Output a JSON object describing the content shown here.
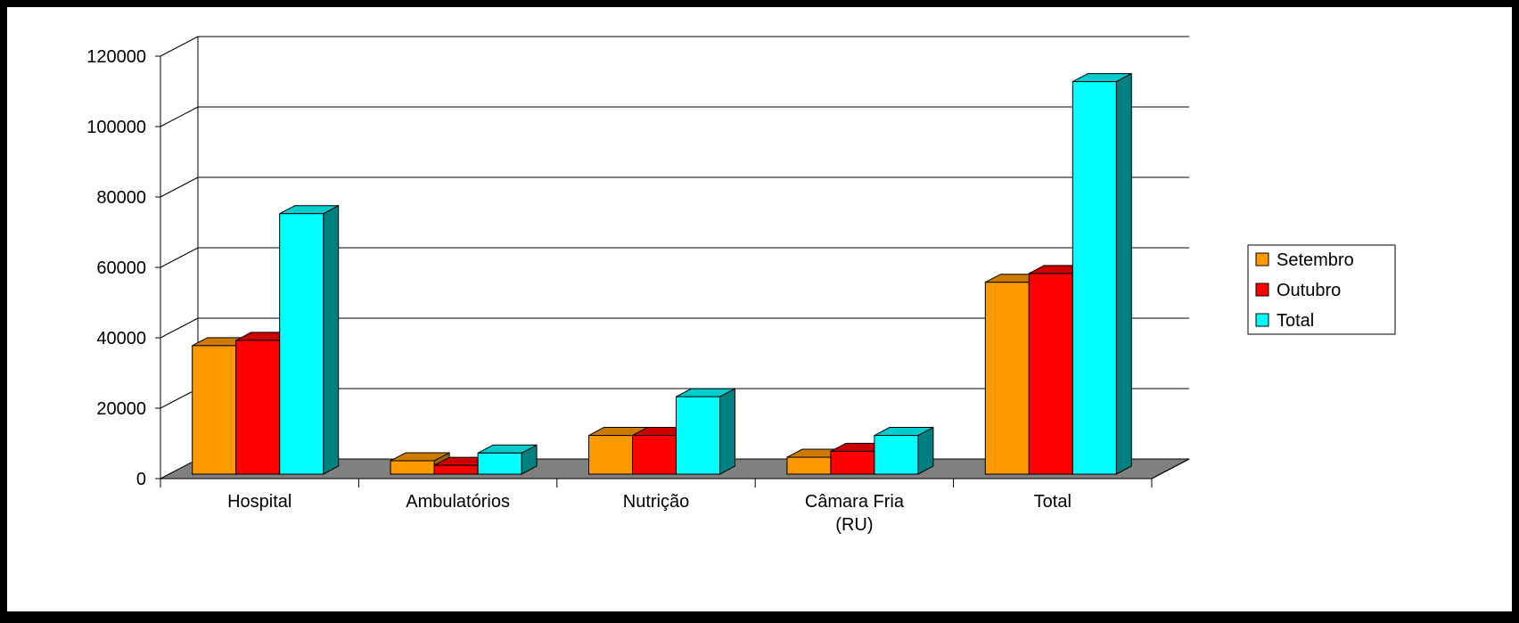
{
  "colors": {
    "background": "#000000",
    "plot_area": "#ffffff",
    "gridline": "#000000",
    "floor": "#808080",
    "series_front": [
      "#ff9900",
      "#ff0000",
      "#00ffff"
    ],
    "series_side": [
      "#996600",
      "#990000",
      "#008080"
    ],
    "series_top": [
      "#cc7a00",
      "#cc0000",
      "#00cccc"
    ]
  },
  "chart_data": {
    "type": "bar",
    "style": "3d-clustered-column",
    "title": "",
    "xlabel": "",
    "ylabel": "",
    "ylim": [
      0,
      120000
    ],
    "yticks": [
      0,
      20000,
      40000,
      60000,
      80000,
      100000,
      120000
    ],
    "ytick_labels": [
      "0",
      "20000",
      "40000",
      "60000",
      "80000",
      "100000",
      "120000"
    ],
    "grid": true,
    "legend": "right",
    "categories": [
      "Hospital",
      "Ambulatórios",
      "Nutrição",
      "Câmara Fria (RU)",
      "Total"
    ],
    "category_label_lines": [
      [
        "Hospital"
      ],
      [
        "Ambulatórios"
      ],
      [
        "Nutrição"
      ],
      [
        "Câmara Fria",
        "(RU)"
      ],
      [
        "Total"
      ]
    ],
    "series": [
      {
        "name": "Setembro",
        "values": [
          36500,
          3800,
          11000,
          4800,
          54500
        ]
      },
      {
        "name": "Outubro",
        "values": [
          38000,
          2500,
          11000,
          6500,
          57000
        ]
      },
      {
        "name": "Total",
        "values": [
          74000,
          6000,
          22000,
          11000,
          111500
        ]
      }
    ]
  }
}
